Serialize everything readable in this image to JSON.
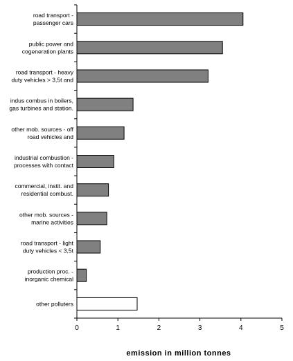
{
  "chart_data": {
    "type": "bar",
    "orientation": "horizontal",
    "categories": [
      [
        "road transport -",
        "passenger cars"
      ],
      [
        "public power and",
        "cogeneration plants"
      ],
      [
        "road transport - heavy",
        "duty vehicles > 3,5t and"
      ],
      [
        "indus combus in boilers,",
        "gas turbines and station."
      ],
      [
        "other mob. sources - off",
        "road vehicles and"
      ],
      [
        "industrial combustion -",
        "processes with contact"
      ],
      [
        "commercial, instit. and",
        "residential combust."
      ],
      [
        "other mob. sources -",
        "marine activities"
      ],
      [
        "road transport - light",
        "duty vehicles < 3,5t"
      ],
      [
        "production proc. -",
        "inorganic chemical"
      ],
      [
        "other polluters"
      ]
    ],
    "values": [
      4.05,
      3.55,
      3.2,
      1.37,
      1.15,
      0.9,
      0.77,
      0.73,
      0.57,
      0.23,
      1.47
    ],
    "bar_colors": [
      "#808080",
      "#808080",
      "#808080",
      "#808080",
      "#808080",
      "#808080",
      "#808080",
      "#808080",
      "#808080",
      "#808080",
      "#ffffff"
    ],
    "xlabel": "emission in million tonnes",
    "xlim": [
      0,
      5
    ],
    "xticks": [
      "0",
      "1",
      "2",
      "3",
      "4",
      "5"
    ],
    "grid": false
  }
}
